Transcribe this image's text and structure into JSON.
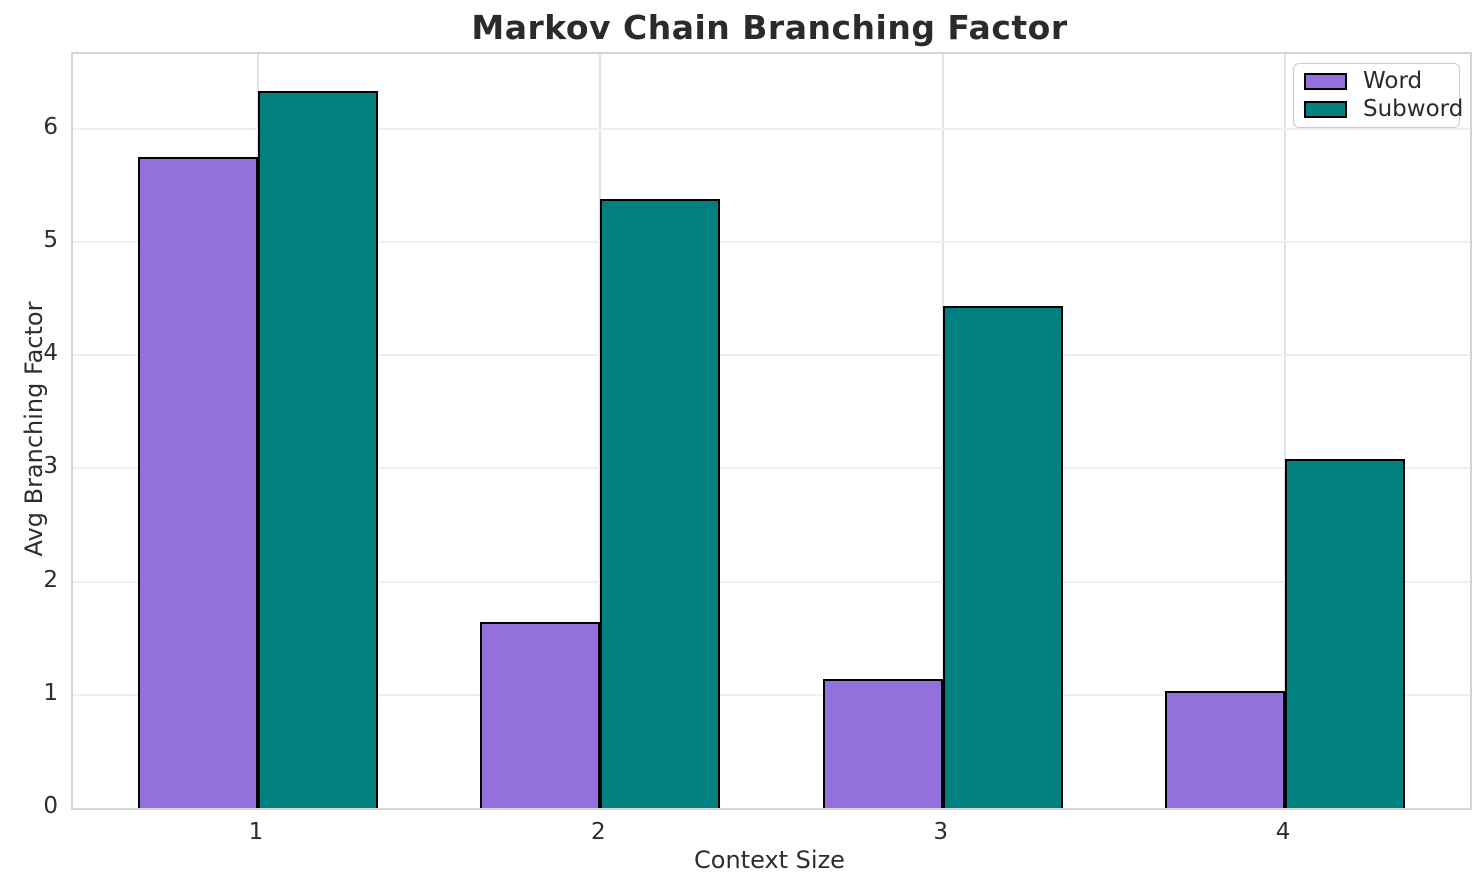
{
  "chart_data": {
    "type": "bar",
    "title": "Markov Chain Branching Factor",
    "xlabel": "Context Size",
    "ylabel": "Avg Branching Factor",
    "categories": [
      "1",
      "2",
      "3",
      "4"
    ],
    "series": [
      {
        "name": "Word",
        "color": "#9370db",
        "values": [
          5.75,
          1.64,
          1.14,
          1.03
        ]
      },
      {
        "name": "Subword",
        "color": "#008080",
        "values": [
          6.33,
          5.38,
          4.43,
          3.08
        ]
      }
    ],
    "bar_width": 0.35,
    "bar_edge_color": "#000000",
    "xlim": [
      0.46,
      4.54
    ],
    "ylim": [
      0,
      6.66
    ],
    "yticks": [
      0,
      1,
      2,
      3,
      4,
      5,
      6
    ],
    "grid": true,
    "grid_color": "#efefef",
    "spine_color": "#d4d4d4",
    "text_color": "#2b2b2b",
    "legend": {
      "position": "upper right",
      "entries": [
        "Word",
        "Subword"
      ]
    }
  }
}
